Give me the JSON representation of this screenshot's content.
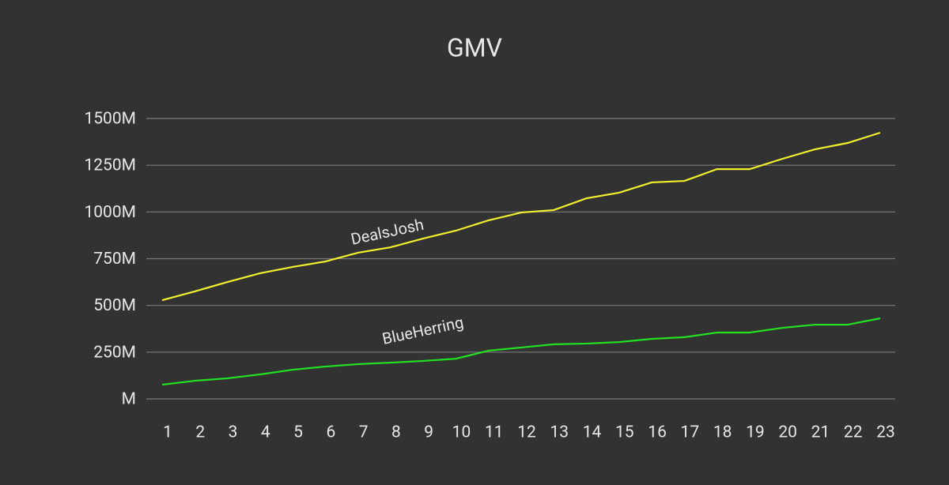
{
  "chart_data": {
    "type": "line",
    "title": "GMV",
    "categories": [
      "1",
      "2",
      "3",
      "4",
      "5",
      "6",
      "7",
      "8",
      "9",
      "10",
      "11",
      "12",
      "13",
      "14",
      "15",
      "16",
      "17",
      "18",
      "19",
      "20",
      "21",
      "22",
      "23"
    ],
    "series": [
      {
        "name": "DealsJosh",
        "color": "#f0f02e",
        "values": [
          528,
          575,
          625,
          672,
          706,
          735,
          782,
          811,
          858,
          900,
          955,
          997,
          1010,
          1073,
          1103,
          1158,
          1166,
          1229,
          1229,
          1284,
          1335,
          1369,
          1424
        ]
      },
      {
        "name": "BlueHerring",
        "color": "#22e022",
        "values": [
          76,
          97,
          110,
          131,
          156,
          173,
          186,
          194,
          203,
          215,
          258,
          275,
          292,
          296,
          304,
          321,
          330,
          355,
          355,
          380,
          397,
          397,
          431
        ]
      }
    ],
    "ylim": [
      0,
      1500
    ],
    "yticks": [
      {
        "value": 0,
        "label": "M"
      },
      {
        "value": 250,
        "label": "250M"
      },
      {
        "value": 500,
        "label": "500M"
      },
      {
        "value": 750,
        "label": "750M"
      },
      {
        "value": 1000,
        "label": "1000M"
      },
      {
        "value": 1250,
        "label": "1250M"
      },
      {
        "value": 1500,
        "label": "1500M"
      }
    ],
    "grid": true
  }
}
